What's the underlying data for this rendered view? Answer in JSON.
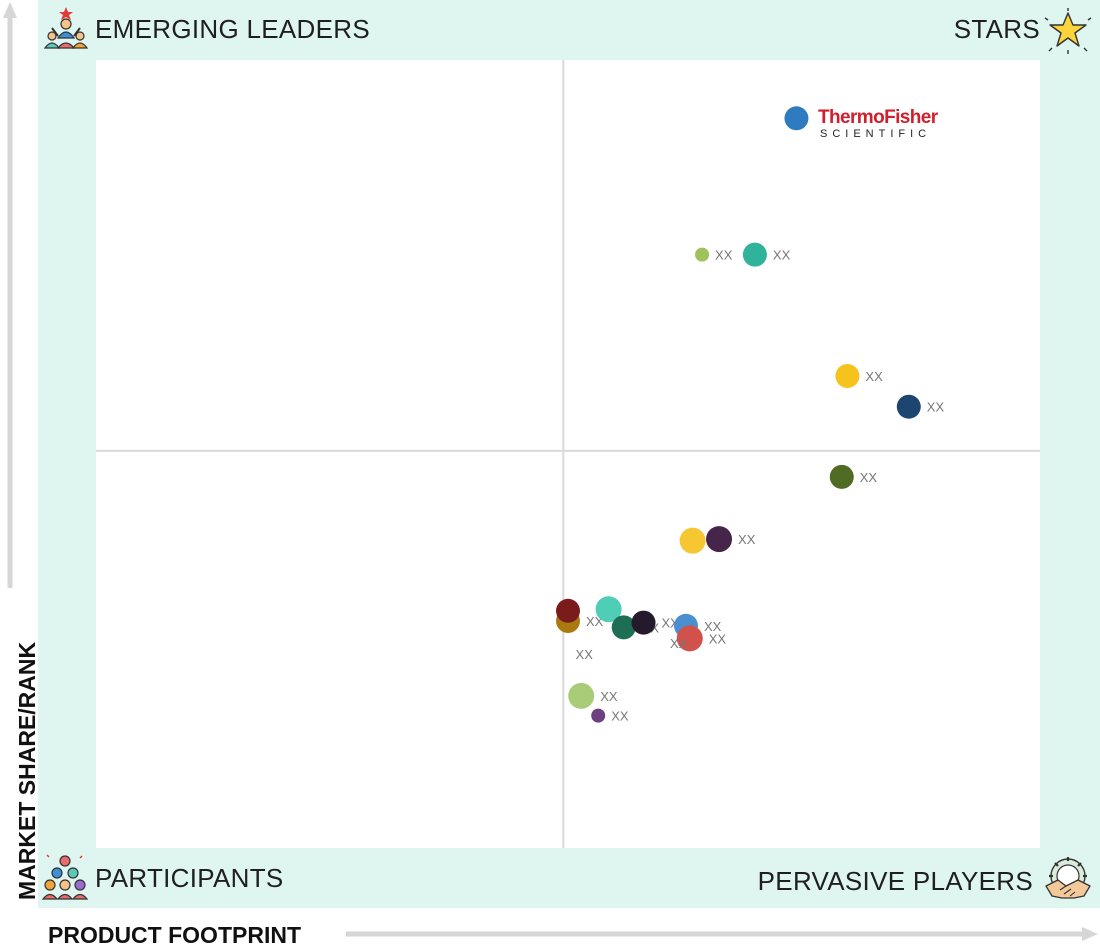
{
  "quadrants": {
    "top_left": "EMERGING LEADERS",
    "top_right": "STARS",
    "bottom_left": "PARTICIPANTS",
    "bottom_right": "PERVASIVE PLAYERS"
  },
  "icons": {
    "top_left": "leader-with-team-icon",
    "top_right": "star-icon",
    "bottom_left": "group-pyramid-icon",
    "bottom_right": "handshake-gear-icon"
  },
  "logo": {
    "line1": "ThermoFisher",
    "line2": "SCIENTIFIC",
    "color": "#d11f2b"
  },
  "chart_data": {
    "type": "scatter",
    "title": "",
    "xlabel": "PRODUCT FOOTPRINT",
    "ylabel": "MARKET SHARE/RANK",
    "xlim": [
      0,
      100
    ],
    "ylim": [
      0,
      100
    ],
    "grid": false,
    "midlines": {
      "x": 49.5,
      "y": 50.4
    },
    "points": [
      {
        "label": "",
        "x": 74.2,
        "y": 92.6,
        "size": 12,
        "color": "#2f7bbf",
        "logo": true
      },
      {
        "label": "XX",
        "x": 64.2,
        "y": 75.3,
        "size": 7,
        "color": "#9fc25a"
      },
      {
        "label": "XX",
        "x": 69.8,
        "y": 75.3,
        "size": 12,
        "color": "#2fb39a"
      },
      {
        "label": "XX",
        "x": 79.6,
        "y": 59.9,
        "size": 12,
        "color": "#f6c21c"
      },
      {
        "label": "XX",
        "x": 86.1,
        "y": 56.0,
        "size": 12,
        "color": "#1c4570"
      },
      {
        "label": "XX",
        "x": 79.0,
        "y": 47.1,
        "size": 12,
        "color": "#4f6b24"
      },
      {
        "label": "XX",
        "x": 63.2,
        "y": 39.0,
        "size": 13,
        "color": "#f6c633"
      },
      {
        "label": "XX",
        "x": 66.0,
        "y": 39.2,
        "size": 13,
        "color": "#45264a"
      },
      {
        "label": "XX",
        "x": 50.0,
        "y": 28.8,
        "size": 12,
        "color": "#a87a10"
      },
      {
        "label": "",
        "x": 50.0,
        "y": 30.1,
        "size": 12,
        "color": "#7a1c1c"
      },
      {
        "label": "",
        "x": 54.3,
        "y": 30.3,
        "size": 13,
        "color": "#4fcdb5"
      },
      {
        "label": "XX",
        "x": 55.9,
        "y": 28.0,
        "size": 12,
        "color": "#1d6e54"
      },
      {
        "label": "XX",
        "x": 58.0,
        "y": 28.6,
        "size": 12,
        "color": "#241a2c"
      },
      {
        "label": "XX",
        "x": 62.5,
        "y": 28.2,
        "size": 12,
        "color": "#4a8fcf"
      },
      {
        "label": "XX",
        "x": 62.9,
        "y": 26.6,
        "size": 13,
        "color": "#d2514a"
      },
      {
        "label": "XX",
        "x": 51.4,
        "y": 19.3,
        "size": 13,
        "color": "#a9cc78"
      },
      {
        "label": "XX",
        "x": 53.2,
        "y": 16.8,
        "size": 7,
        "color": "#6d4080"
      }
    ],
    "extra_labels": [
      {
        "text": "XX",
        "x": 50.8,
        "y": 24.0
      },
      {
        "text": "XX",
        "x": 60.8,
        "y": 25.4
      }
    ]
  }
}
